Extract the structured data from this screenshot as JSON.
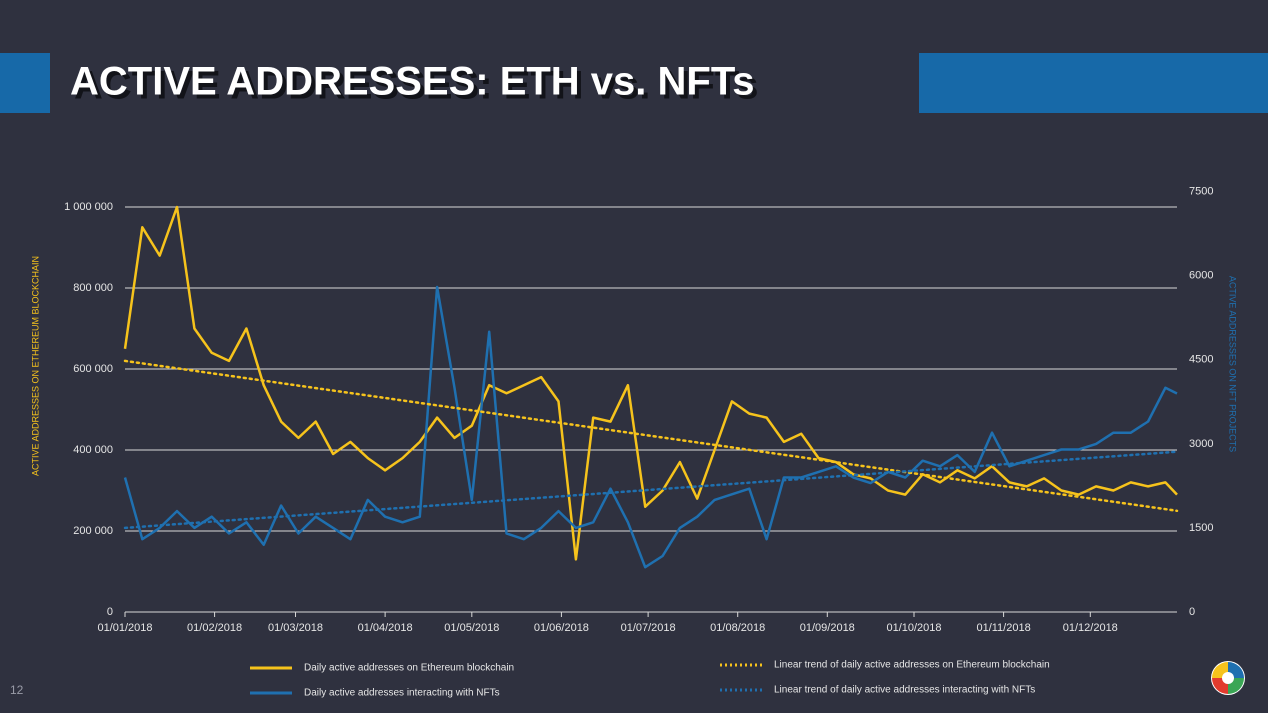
{
  "slide": {
    "title": "ACTIVE ADDRESSES: ETH vs. NFTs",
    "page_number": "12"
  },
  "chart_data": {
    "type": "line",
    "y_label": "ACTIVE ADDRESSES ON ETHEREUM BLOCKCHAIN",
    "y2_label": "ACTIVE ADDRESSES ON NFT PROJECTS",
    "x": [
      "01/01/2018",
      "07/01/2018",
      "13/01/2018",
      "19/01/2018",
      "25/01/2018",
      "31/01/2018",
      "06/02/2018",
      "12/02/2018",
      "18/02/2018",
      "24/02/2018",
      "02/03/2018",
      "08/03/2018",
      "14/03/2018",
      "20/03/2018",
      "26/03/2018",
      "01/04/2018",
      "07/04/2018",
      "13/04/2018",
      "19/04/2018",
      "25/04/2018",
      "01/05/2018",
      "07/05/2018",
      "13/05/2018",
      "19/05/2018",
      "25/05/2018",
      "31/05/2018",
      "06/06/2018",
      "12/06/2018",
      "18/06/2018",
      "24/06/2018",
      "30/06/2018",
      "06/07/2018",
      "12/07/2018",
      "18/07/2018",
      "24/07/2018",
      "30/07/2018",
      "05/08/2018",
      "11/08/2018",
      "17/08/2018",
      "23/08/2018",
      "29/08/2018",
      "04/09/2018",
      "10/09/2018",
      "16/09/2018",
      "22/09/2018",
      "28/09/2018",
      "04/10/2018",
      "10/10/2018",
      "16/10/2018",
      "22/10/2018",
      "28/10/2018",
      "03/11/2018",
      "09/11/2018",
      "15/11/2018",
      "21/11/2018",
      "27/11/2018",
      "03/12/2018",
      "09/12/2018",
      "15/12/2018",
      "21/12/2018",
      "27/12/2018",
      "31/12/2018"
    ],
    "xlim": [
      "01/01/2018",
      "31/12/2018"
    ],
    "xticks": [
      "01/01/2018",
      "01/02/2018",
      "01/03/2018",
      "01/04/2018",
      "01/05/2018",
      "01/06/2018",
      "01/07/2018",
      "01/08/2018",
      "01/09/2018",
      "01/10/2018",
      "01/11/2018",
      "01/12/2018"
    ],
    "ylim": [
      0,
      1100000
    ],
    "yticks": [
      0,
      {
        "value": 200000,
        "label": "200 000"
      },
      {
        "value": 400000,
        "label": "400 000"
      },
      {
        "value": 600000,
        "label": "600 000"
      },
      {
        "value": 800000,
        "label": "800 000"
      },
      {
        "value": 1000000,
        "label": "1 000 000"
      }
    ],
    "y2lim": [
      0,
      7950
    ],
    "y2ticks": [
      0,
      1500,
      3000,
      4500,
      6000,
      7500
    ],
    "grid": true,
    "series": [
      {
        "name": "Daily active addresses on Ethereum blockchain",
        "color": "#f6c31c",
        "style": "solid",
        "values": [
          650000,
          950000,
          880000,
          1000000,
          700000,
          640000,
          620000,
          700000,
          560000,
          470000,
          430000,
          470000,
          390000,
          420000,
          380000,
          350000,
          380000,
          420000,
          480000,
          430000,
          460000,
          560000,
          540000,
          560000,
          580000,
          520000,
          130000,
          480000,
          470000,
          560000,
          260000,
          300000,
          370000,
          280000,
          400000,
          520000,
          490000,
          480000,
          420000,
          440000,
          380000,
          370000,
          340000,
          330000,
          300000,
          290000,
          340000,
          320000,
          350000,
          330000,
          360000,
          320000,
          310000,
          330000,
          300000,
          290000,
          310000,
          300000,
          320000,
          310000,
          320000,
          290000
        ]
      },
      {
        "name": "Daily active addresses interacting with NFTs",
        "color": "#1f70b0",
        "style": "solid",
        "axis": "y2",
        "values": [
          2400,
          1300,
          1500,
          1800,
          1500,
          1700,
          1400,
          1600,
          1200,
          1900,
          1400,
          1700,
          1500,
          1300,
          2000,
          1700,
          1600,
          1700,
          5800,
          4000,
          2000,
          5000,
          1400,
          1300,
          1500,
          1800,
          1500,
          1600,
          2200,
          1600,
          800,
          1000,
          1500,
          1700,
          2000,
          2100,
          2200,
          1300,
          2400,
          2400,
          2500,
          2600,
          2400,
          2300,
          2500,
          2400,
          2700,
          2600,
          2800,
          2500,
          3200,
          2600,
          2700,
          2800,
          2900,
          2900,
          3000,
          3200,
          3200,
          3400,
          4000,
          3900
        ]
      },
      {
        "name": "Linear trend of daily active addresses on Ethereum blockchain",
        "color": "#f6c31c",
        "style": "dotted",
        "x": [
          "01/01/2018",
          "31/12/2018"
        ],
        "values": [
          620000,
          250000
        ]
      },
      {
        "name": "Linear trend of daily active addresses interacting with NFTs",
        "color": "#1f70b0",
        "style": "dotted",
        "axis": "y2",
        "x": [
          "01/01/2018",
          "31/12/2018"
        ],
        "values": [
          1500,
          2860
        ]
      }
    ]
  }
}
